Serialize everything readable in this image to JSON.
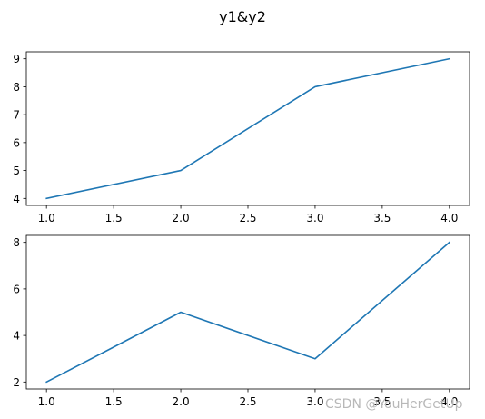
{
  "figure": {
    "suptitle": "y1&y2",
    "watermark": "CSDN @YouHerGetUp"
  },
  "chart_data": [
    {
      "type": "line",
      "title": "",
      "xlabel": "",
      "ylabel": "",
      "x": [
        1.0,
        2.0,
        3.0,
        4.0
      ],
      "series": [
        {
          "values": [
            4,
            5,
            8,
            9
          ],
          "color": "#1f77b4"
        }
      ],
      "xlim": [
        0.85,
        4.15
      ],
      "ylim": [
        3.75,
        9.25
      ],
      "xticks": [
        1.0,
        1.5,
        2.0,
        2.5,
        3.0,
        3.5,
        4.0
      ],
      "xtick_labels": [
        "1.0",
        "1.5",
        "2.0",
        "2.5",
        "3.0",
        "3.5",
        "4.0"
      ],
      "yticks": [
        4,
        5,
        6,
        7,
        8,
        9
      ],
      "ytick_labels": [
        "4",
        "5",
        "6",
        "7",
        "8",
        "9"
      ],
      "grid": false
    },
    {
      "type": "line",
      "title": "",
      "xlabel": "",
      "ylabel": "",
      "x": [
        1.0,
        2.0,
        3.0,
        4.0
      ],
      "series": [
        {
          "values": [
            2,
            5,
            3,
            8
          ],
          "color": "#1f77b4"
        }
      ],
      "xlim": [
        0.85,
        4.15
      ],
      "ylim": [
        1.7,
        8.3
      ],
      "xticks": [
        1.0,
        1.5,
        2.0,
        2.5,
        3.0,
        3.5,
        4.0
      ],
      "xtick_labels": [
        "1.0",
        "1.5",
        "2.0",
        "2.5",
        "3.0",
        "3.5",
        "4.0"
      ],
      "yticks": [
        2,
        4,
        6,
        8
      ],
      "ytick_labels": [
        "2",
        "4",
        "6",
        "8"
      ],
      "grid": false
    }
  ]
}
